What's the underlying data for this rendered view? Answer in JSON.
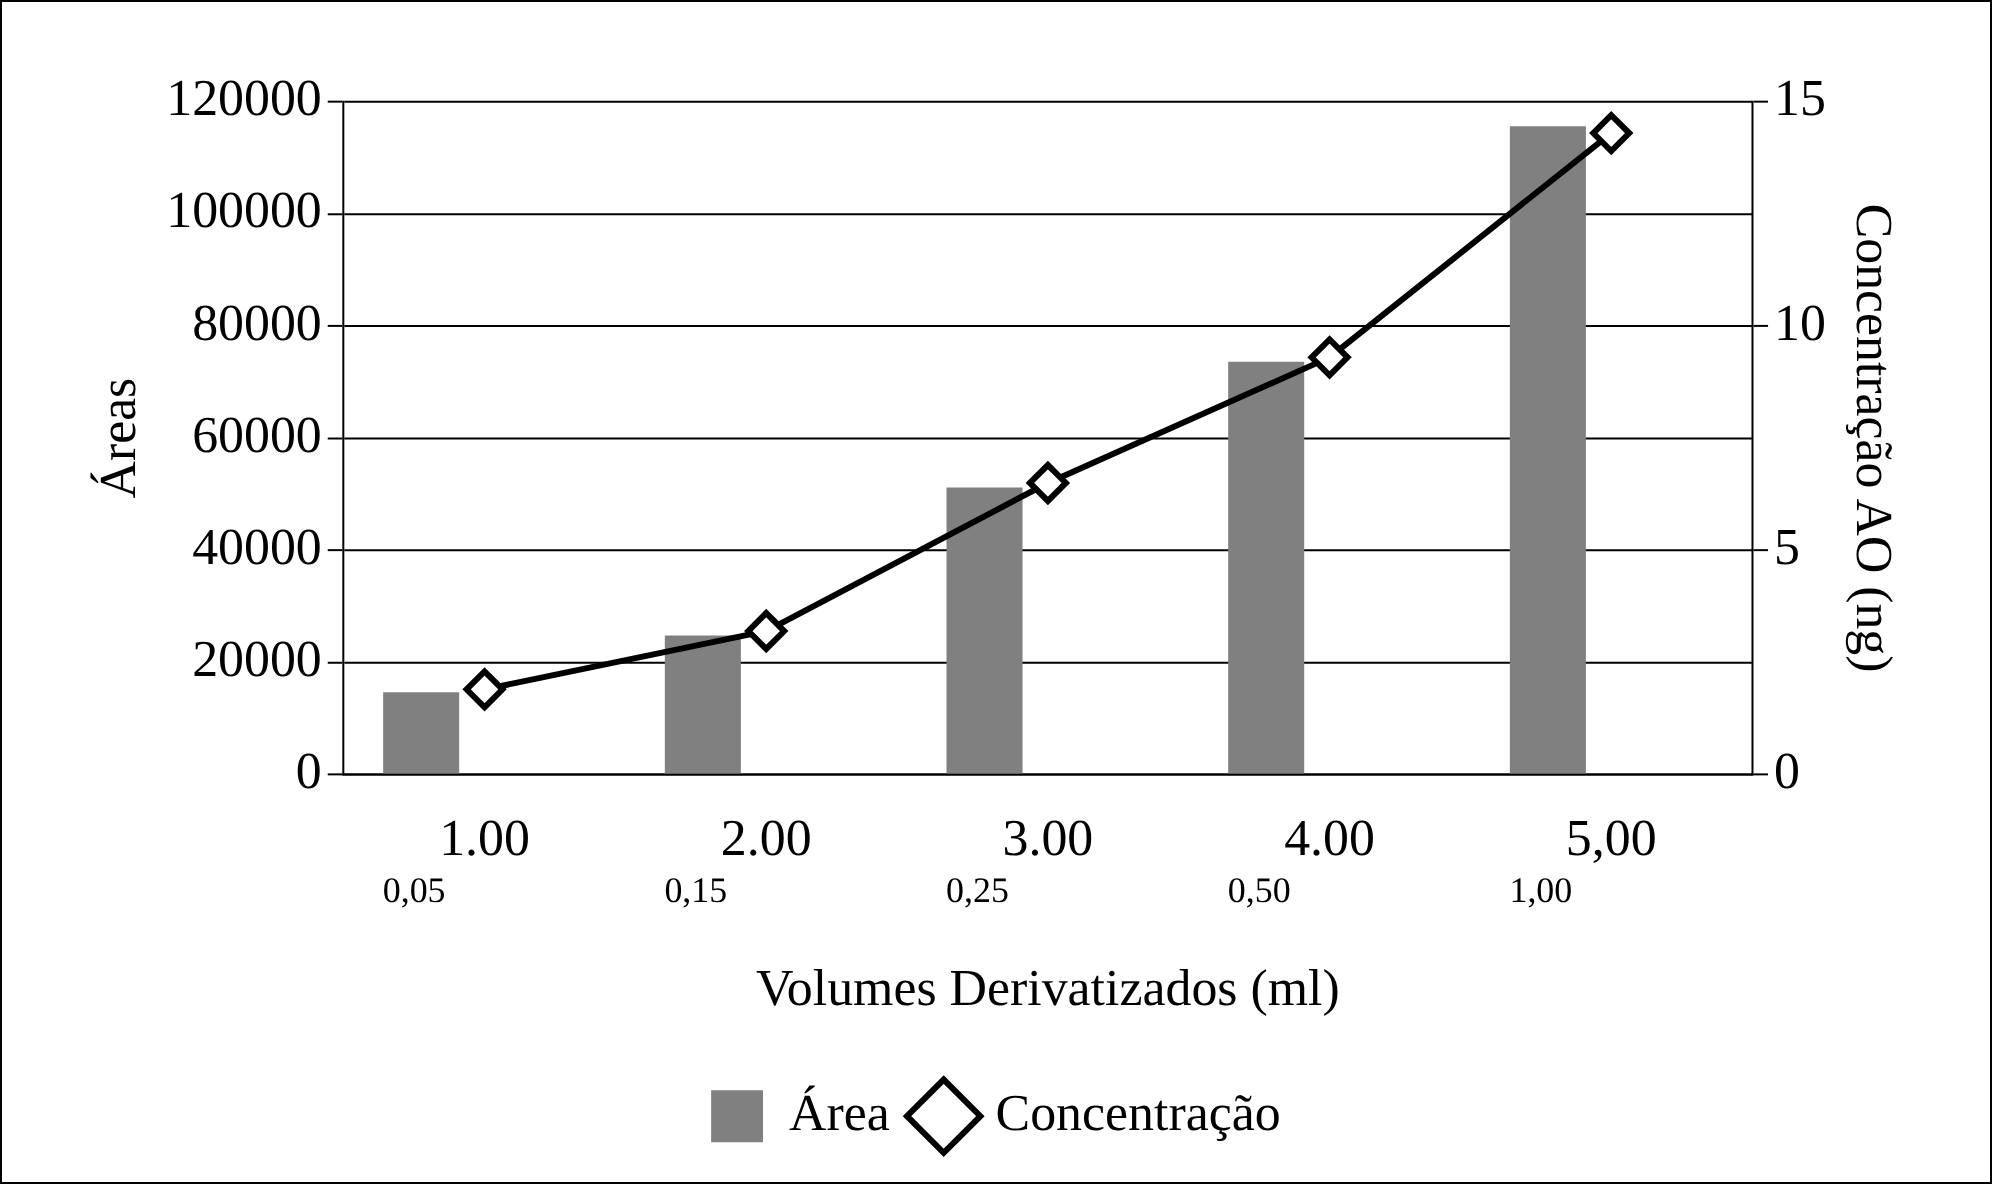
{
  "chart_data": {
    "type": "bar",
    "xlabel": "Volumes Derivatizados (ml)",
    "ylabel": "Áreas",
    "y2label": "Concentração AO (ng)",
    "categories": [
      "1.00",
      "2.00",
      "3.00",
      "4.00",
      "5,00"
    ],
    "series": [
      {
        "name": "Área",
        "color": "#808080",
        "values": [
          14700,
          24800,
          51200,
          73600,
          115600
        ]
      },
      {
        "name": "Concentração",
        "type": "line",
        "axis": "y2",
        "color": "#000000",
        "marker": "diamond",
        "values": [
          1.9,
          3.2,
          6.5,
          9.3,
          14.3
        ]
      }
    ],
    "ylim": [
      0,
      120000
    ],
    "yticks": [
      0,
      20000,
      40000,
      60000,
      80000,
      100000,
      120000
    ],
    "y2lim": [
      0,
      15
    ],
    "y2ticks": [
      0,
      5,
      10,
      15
    ],
    "annotations": [
      "0,05",
      "0,15",
      "0,25",
      "0,50",
      "1,00"
    ],
    "grid": "y",
    "legend": "bottom"
  }
}
